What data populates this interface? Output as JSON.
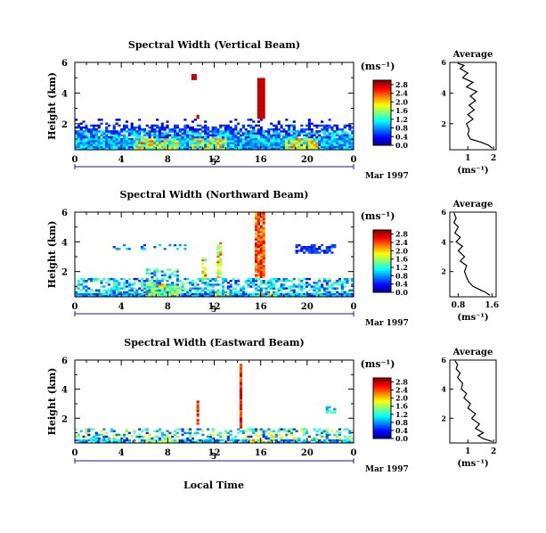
{
  "figure": {
    "local_time_label": "Local Time",
    "date_label": "Mar 1997",
    "day_label": "5"
  },
  "chart_data": [
    {
      "type": "heatmap",
      "title": "Spectral Width (Vertical Beam)",
      "xlabel": "",
      "ylabel": "Height (km)",
      "x_ticks": [
        "0",
        "4",
        "8",
        "12",
        "16",
        "20",
        "0"
      ],
      "y_ticks": [
        "2",
        "4",
        "6"
      ],
      "xlim": [
        0,
        24
      ],
      "ylim": [
        0.3,
        6.0
      ],
      "colorbar": {
        "unit": "(ms⁻¹)",
        "ticks": [
          "0.0",
          "0.4",
          "0.8",
          "1.2",
          "1.6",
          "2.0",
          "2.4",
          "2.8"
        ],
        "range": [
          0.0,
          3.0
        ]
      },
      "average": {
        "title": "Average",
        "xlabel": "(ms⁻¹)",
        "x_ticks": [
          "1",
          "2"
        ],
        "y_ticks": [
          "2",
          "4",
          "6"
        ],
        "xlim": [
          0.3,
          2.1
        ],
        "profile": [
          [
            1.95,
            0.4
          ],
          [
            1.8,
            0.6
          ],
          [
            1.5,
            0.8
          ],
          [
            1.1,
            1.0
          ],
          [
            1.0,
            1.3
          ],
          [
            1.05,
            1.6
          ],
          [
            0.95,
            2.0
          ],
          [
            1.2,
            2.3
          ],
          [
            1.0,
            2.6
          ],
          [
            1.25,
            2.9
          ],
          [
            1.05,
            3.2
          ],
          [
            1.3,
            3.5
          ],
          [
            1.1,
            3.8
          ],
          [
            1.35,
            4.1
          ],
          [
            0.95,
            4.4
          ],
          [
            1.2,
            4.7
          ],
          [
            0.8,
            5.0
          ],
          [
            1.0,
            5.3
          ],
          [
            0.7,
            5.6
          ],
          [
            0.85,
            5.8
          ],
          [
            0.6,
            5.95
          ]
        ]
      }
    },
    {
      "type": "heatmap",
      "title": "Spectral Width (Northward Beam)",
      "xlabel": "",
      "ylabel": "Height (km)",
      "x_ticks": [
        "0",
        "4",
        "8",
        "12",
        "16",
        "20",
        "0"
      ],
      "y_ticks": [
        "2",
        "4",
        "6"
      ],
      "xlim": [
        0,
        24
      ],
      "ylim": [
        0.3,
        6.0
      ],
      "colorbar": {
        "unit": "(ms⁻¹)",
        "ticks": [
          "0.0",
          "0.4",
          "0.8",
          "1.2",
          "1.6",
          "2.0",
          "2.4",
          "2.8"
        ],
        "range": [
          0.0,
          3.0
        ]
      },
      "average": {
        "title": "Average",
        "xlabel": "(ms⁻¹)",
        "x_ticks": [
          "0.8",
          "1.6"
        ],
        "y_ticks": [
          "2",
          "4",
          "6"
        ],
        "xlim": [
          0.6,
          1.7
        ],
        "profile": [
          [
            1.55,
            0.4
          ],
          [
            1.45,
            0.6
          ],
          [
            1.3,
            0.8
          ],
          [
            1.15,
            1.0
          ],
          [
            1.05,
            1.3
          ],
          [
            1.0,
            1.6
          ],
          [
            0.95,
            2.0
          ],
          [
            1.0,
            2.4
          ],
          [
            0.85,
            2.7
          ],
          [
            0.95,
            3.0
          ],
          [
            0.8,
            3.4
          ],
          [
            0.9,
            3.7
          ],
          [
            0.75,
            4.0
          ],
          [
            0.85,
            4.3
          ],
          [
            0.72,
            4.6
          ],
          [
            0.8,
            5.0
          ],
          [
            0.7,
            5.3
          ],
          [
            0.75,
            5.6
          ],
          [
            0.7,
            5.95
          ]
        ]
      }
    },
    {
      "type": "heatmap",
      "title": "Spectral Width (Eastward Beam)",
      "xlabel": "Local Time",
      "ylabel": "Height (km)",
      "x_ticks": [
        "0",
        "4",
        "8",
        "12",
        "16",
        "20",
        "0"
      ],
      "y_ticks": [
        "2",
        "4",
        "6"
      ],
      "xlim": [
        0,
        24
      ],
      "ylim": [
        0.3,
        6.0
      ],
      "colorbar": {
        "unit": "(ms⁻¹)",
        "ticks": [
          "0.0",
          "0.4",
          "0.8",
          "1.2",
          "1.6",
          "2.0",
          "2.4",
          "2.8"
        ],
        "range": [
          0.0,
          3.0
        ]
      },
      "average": {
        "title": "Average",
        "xlabel": "(ms⁻¹)",
        "x_ticks": [
          "1",
          "2"
        ],
        "y_ticks": [
          "2",
          "4",
          "6"
        ],
        "xlim": [
          0.3,
          2.1
        ],
        "profile": [
          [
            1.95,
            0.4
          ],
          [
            1.6,
            0.6
          ],
          [
            1.4,
            0.8
          ],
          [
            1.6,
            1.0
          ],
          [
            1.3,
            1.3
          ],
          [
            1.45,
            1.6
          ],
          [
            1.15,
            2.0
          ],
          [
            1.3,
            2.3
          ],
          [
            1.0,
            2.7
          ],
          [
            1.1,
            3.0
          ],
          [
            0.85,
            3.4
          ],
          [
            0.95,
            3.7
          ],
          [
            0.75,
            4.0
          ],
          [
            0.8,
            4.4
          ],
          [
            0.6,
            4.8
          ],
          [
            0.7,
            5.1
          ],
          [
            0.55,
            5.4
          ],
          [
            0.6,
            5.7
          ],
          [
            0.5,
            5.95
          ]
        ]
      }
    }
  ]
}
